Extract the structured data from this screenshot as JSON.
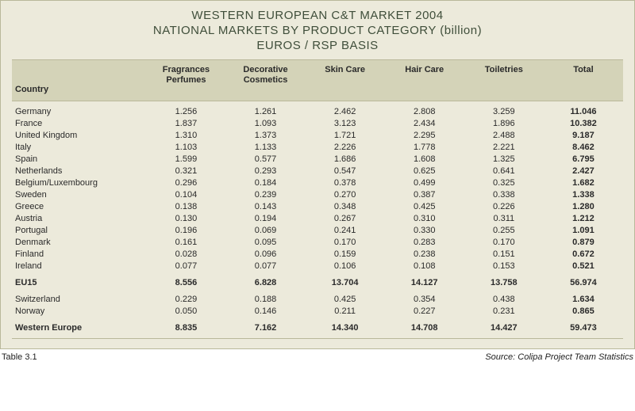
{
  "colors": {
    "panel_bg": "#eceadb",
    "header_bg": "#d4d3b8",
    "border": "#b9b89a",
    "title_color": "#3f4e3a",
    "text_color": "#2a2a2a"
  },
  "title": {
    "line1": "WESTERN EUROPEAN C&T MARKET 2004",
    "line2": "NATIONAL MARKETS BY PRODUCT CATEGORY (billion)",
    "line3": "EUROS / RSP BASIS"
  },
  "columns": [
    {
      "label_l1": "Country",
      "label_l2": ""
    },
    {
      "label_l1": "Fragrances",
      "label_l2": "Perfumes"
    },
    {
      "label_l1": "Decorative",
      "label_l2": "Cosmetics"
    },
    {
      "label_l1": "Skin Care",
      "label_l2": ""
    },
    {
      "label_l1": "Hair Care",
      "label_l2": ""
    },
    {
      "label_l1": "Toiletries",
      "label_l2": ""
    },
    {
      "label_l1": "Total",
      "label_l2": ""
    }
  ],
  "rows_main": [
    {
      "c": "Germany",
      "v": [
        "1.256",
        "1.261",
        "2.462",
        "2.808",
        "3.259",
        "11.046"
      ]
    },
    {
      "c": "France",
      "v": [
        "1.837",
        "1.093",
        "3.123",
        "2.434",
        "1.896",
        "10.382"
      ]
    },
    {
      "c": "United Kingdom",
      "v": [
        "1.310",
        "1.373",
        "1.721",
        "2.295",
        "2.488",
        "9.187"
      ]
    },
    {
      "c": "Italy",
      "v": [
        "1.103",
        "1.133",
        "2.226",
        "1.778",
        "2.221",
        "8.462"
      ]
    },
    {
      "c": "Spain",
      "v": [
        "1.599",
        "0.577",
        "1.686",
        "1.608",
        "1.325",
        "6.795"
      ]
    },
    {
      "c": "Netherlands",
      "v": [
        "0.321",
        "0.293",
        "0.547",
        "0.625",
        "0.641",
        "2.427"
      ]
    },
    {
      "c": "Belgium/Luxembourg",
      "v": [
        "0.296",
        "0.184",
        "0.378",
        "0.499",
        "0.325",
        "1.682"
      ]
    },
    {
      "c": "Sweden",
      "v": [
        "0.104",
        "0.239",
        "0.270",
        "0.387",
        "0.338",
        "1.338"
      ]
    },
    {
      "c": "Greece",
      "v": [
        "0.138",
        "0.143",
        "0.348",
        "0.425",
        "0.226",
        "1.280"
      ]
    },
    {
      "c": "Austria",
      "v": [
        "0.130",
        "0.194",
        "0.267",
        "0.310",
        "0.311",
        "1.212"
      ]
    },
    {
      "c": "Portugal",
      "v": [
        "0.196",
        "0.069",
        "0.241",
        "0.330",
        "0.255",
        "1.091"
      ]
    },
    {
      "c": "Denmark",
      "v": [
        "0.161",
        "0.095",
        "0.170",
        "0.283",
        "0.170",
        "0.879"
      ]
    },
    {
      "c": "Finland",
      "v": [
        "0.028",
        "0.096",
        "0.159",
        "0.238",
        "0.151",
        "0.672"
      ]
    },
    {
      "c": "Ireland",
      "v": [
        "0.077",
        "0.077",
        "0.106",
        "0.108",
        "0.153",
        "0.521"
      ]
    }
  ],
  "summary_eu15": {
    "c": "EU15",
    "v": [
      "8.556",
      "6.828",
      "13.704",
      "14.127",
      "13.758",
      "56.974"
    ]
  },
  "rows_extra": [
    {
      "c": "Switzerland",
      "v": [
        "0.229",
        "0.188",
        "0.425",
        "0.354",
        "0.438",
        "1.634"
      ]
    },
    {
      "c": "Norway",
      "v": [
        "0.050",
        "0.146",
        "0.211",
        "0.227",
        "0.231",
        "0.865"
      ]
    }
  ],
  "summary_we": {
    "c": "Western Europe",
    "v": [
      "8.835",
      "7.162",
      "14.340",
      "14.708",
      "14.427",
      "59.473"
    ]
  },
  "footer": {
    "table_no": "Table 3.1",
    "source": "Source: Colipa Project Team Statistics"
  }
}
